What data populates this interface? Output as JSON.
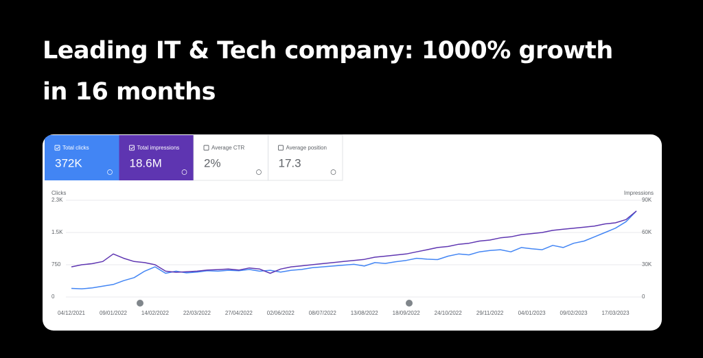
{
  "title": "Leading IT & Tech company: 1000% growth in 16 months",
  "cards": [
    {
      "label": "Total clicks",
      "value": "372K"
    },
    {
      "label": "Total impressions",
      "value": "18.6M"
    },
    {
      "label": "Average CTR",
      "value": "2%"
    },
    {
      "label": "Average position",
      "value": "17.3"
    }
  ],
  "chart_data": {
    "type": "line",
    "categories": [
      "04/12/2021",
      null,
      null,
      null,
      "09/01/2022",
      null,
      null,
      null,
      "14/02/2022",
      null,
      null,
      null,
      "22/03/2022",
      null,
      null,
      null,
      "27/04/2022",
      null,
      null,
      null,
      "02/06/2022",
      null,
      null,
      null,
      "08/07/2022",
      null,
      null,
      null,
      "13/08/2022",
      null,
      null,
      null,
      "18/09/2022",
      null,
      null,
      null,
      "24/10/2022",
      null,
      null,
      null,
      "29/11/2022",
      null,
      null,
      null,
      "04/01/2023",
      null,
      null,
      null,
      "09/02/2023",
      null,
      null,
      null,
      "17/03/2023",
      null,
      null
    ],
    "series": [
      {
        "name": "Clicks",
        "color": "#4285f4",
        "values": [
          200,
          190,
          210,
          250,
          290,
          380,
          450,
          600,
          700,
          550,
          600,
          560,
          580,
          610,
          600,
          620,
          610,
          640,
          600,
          620,
          580,
          620,
          640,
          680,
          700,
          720,
          740,
          760,
          720,
          800,
          780,
          820,
          850,
          900,
          880,
          870,
          950,
          1000,
          980,
          1050,
          1080,
          1100,
          1050,
          1150,
          1120,
          1100,
          1200,
          1150,
          1250,
          1300,
          1400,
          1500,
          1600,
          1750,
          2000
        ]
      },
      {
        "name": "Impressions",
        "color": "#5e35b1",
        "axis": "y2",
        "values": [
          28000,
          30000,
          31000,
          33000,
          40000,
          36000,
          33000,
          32000,
          30000,
          24000,
          23000,
          23500,
          24000,
          25000,
          25500,
          26000,
          25000,
          27000,
          26000,
          22000,
          26000,
          28000,
          29000,
          30000,
          31000,
          32000,
          33000,
          34000,
          35000,
          37000,
          38000,
          39000,
          40000,
          42000,
          44000,
          46000,
          47000,
          49000,
          50000,
          52000,
          53000,
          55000,
          56000,
          58000,
          59000,
          60000,
          62000,
          63000,
          64000,
          65000,
          66000,
          68000,
          69000,
          72000,
          80000
        ]
      }
    ],
    "ylim": [
      0,
      2250
    ],
    "yticks": [
      0,
      750,
      {
        "value": 1500,
        "label": "1.5K"
      },
      {
        "value": 2250,
        "label": "2.3K"
      }
    ],
    "y2lim": [
      0,
      90000
    ],
    "y2ticks": [
      0,
      {
        "value": 30000,
        "label": "30K"
      },
      {
        "value": 60000,
        "label": "60K"
      },
      {
        "value": 90000,
        "label": "90K"
      }
    ],
    "grid": true
  }
}
